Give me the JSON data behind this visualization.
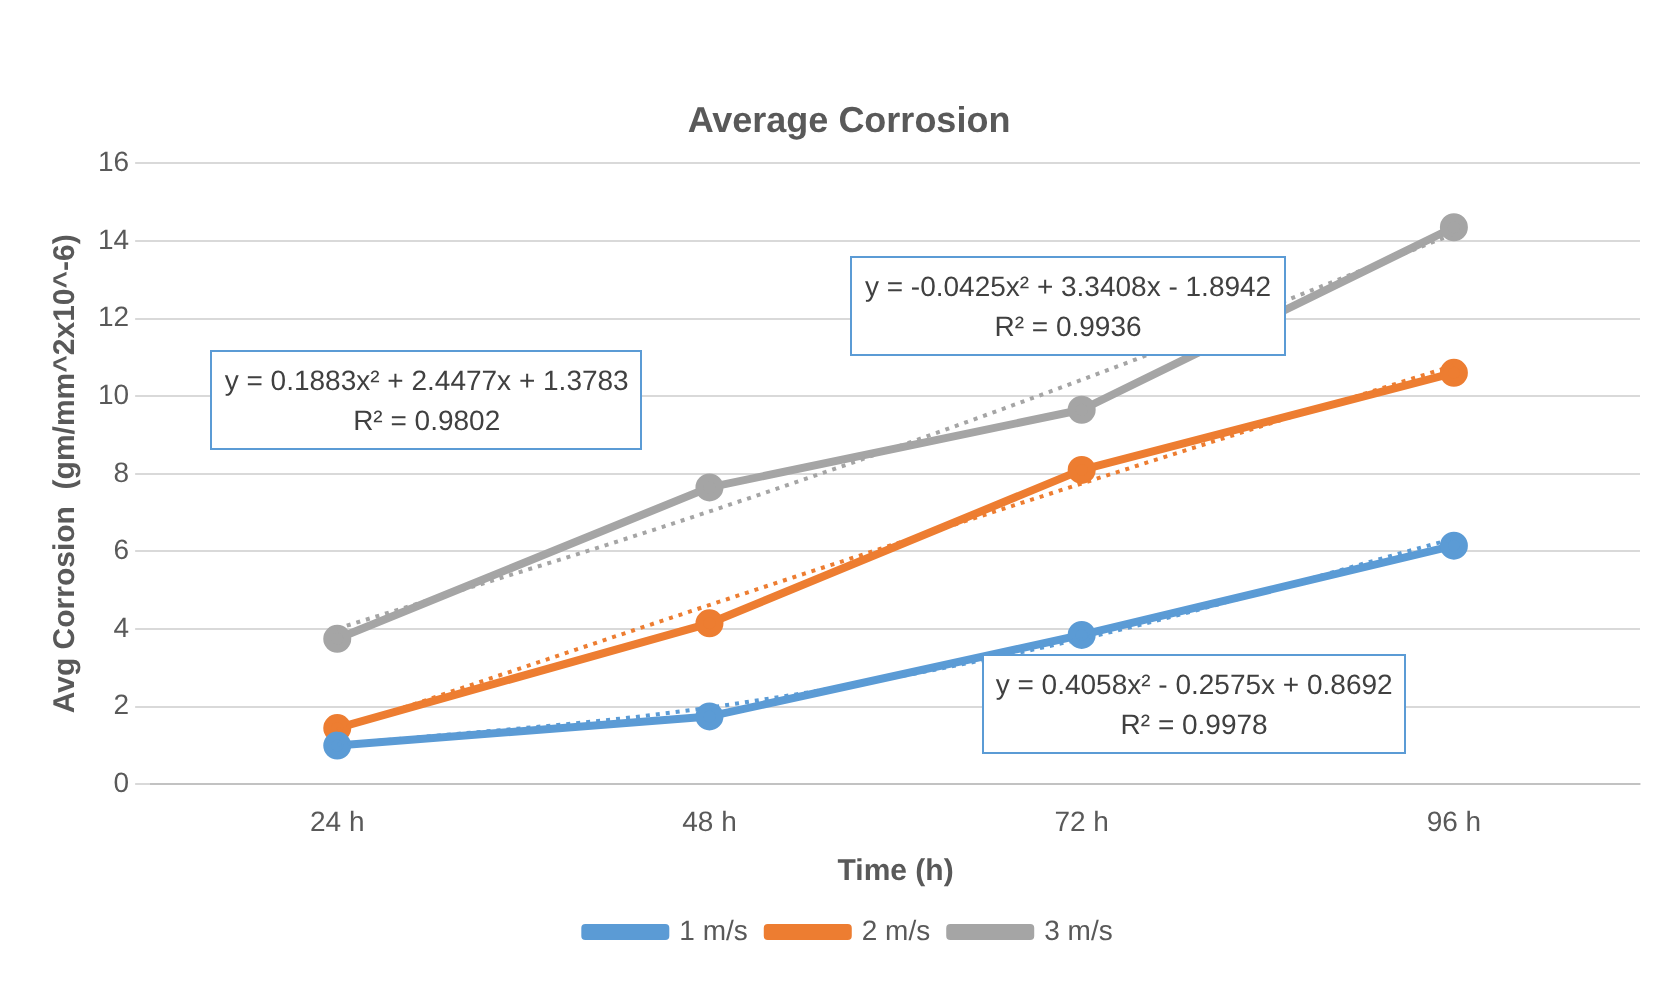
{
  "chart_data": {
    "type": "line",
    "title": "Average Corrosion",
    "xlabel": "Time (h)",
    "ylabel": "Avg Corrosion  (gm/mm^2x10^-6)",
    "categories": [
      "24 h",
      "48 h",
      "72 h",
      "96 h"
    ],
    "series": [
      {
        "name": "1 m/s",
        "color": "#5b9bd5",
        "values": [
          1.0,
          1.75,
          3.85,
          6.15
        ]
      },
      {
        "name": "2 m/s",
        "color": "#ed7d31",
        "values": [
          1.45,
          4.15,
          8.1,
          10.6
        ]
      },
      {
        "name": "3 m/s",
        "color": "#a5a5a5",
        "values": [
          3.75,
          7.65,
          9.65,
          14.35
        ]
      },
      {
        "type": "line",
        "color": "#5b9bd5",
        "x": [
          "24 h",
          "48 h",
          "72 h",
          "96 h"
        ],
        "values": [
          1.02,
          1.98,
          3.75,
          6.33
        ],
        "line_style": "dotted",
        "marker": "none"
      },
      {
        "type": "line",
        "color": "#ed7d31",
        "x": [
          "24 h",
          "48 h",
          "72 h",
          "96 h"
        ],
        "values": [
          1.4,
          4.62,
          7.75,
          10.79
        ],
        "line_style": "dotted",
        "marker": "none"
      },
      {
        "type": "line",
        "color": "#a5a5a5",
        "x": [
          "24 h",
          "48 h",
          "72 h",
          "96 h"
        ],
        "values": [
          4.01,
          7.03,
          10.42,
          14.18
        ],
        "line_style": "dotted",
        "marker": "none"
      }
    ],
    "ylim": [
      0,
      16
    ],
    "yticks": [
      0,
      2,
      4,
      6,
      8,
      10,
      12,
      14,
      16
    ],
    "grid": "y",
    "legend": "bottom",
    "marker": "circle",
    "line_style": "solid",
    "annotations": [
      "y = 0.1883x² + 2.4477x + 1.3783\nR² = 0.9802",
      "y = -0.0425x² + 3.3408x - 1.8942\nR² = 0.9936",
      "y = 0.4058x² - 0.2575x + 0.8692\nR² = 0.9978"
    ]
  }
}
